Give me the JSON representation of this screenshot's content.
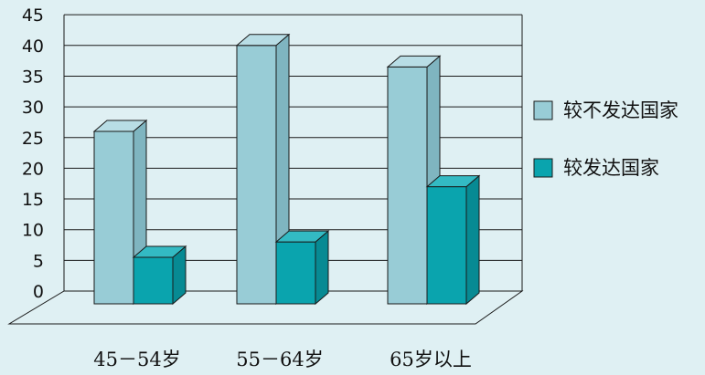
{
  "colors": {
    "background": "#dff0f3",
    "grid": "#1a1a1a",
    "light_front": "#98ccd6",
    "light_top": "#b8dde5",
    "light_side": "#7fb5c0",
    "dark_front": "#0aa4ae",
    "dark_top": "#33bac3",
    "dark_side": "#078a93",
    "edge": "#1a1a1a"
  },
  "chart_data": {
    "type": "bar",
    "title": "",
    "xlabel": "",
    "ylabel": "",
    "ylim": [
      0,
      45
    ],
    "yticks": [
      0,
      5,
      10,
      15,
      20,
      25,
      30,
      35,
      40,
      45
    ],
    "categories": [
      "45－54岁",
      "55－64岁",
      "65岁以上"
    ],
    "series": [
      {
        "name": "较不发达国家",
        "values": [
          26,
          40,
          36.5
        ]
      },
      {
        "name": "较发达国家",
        "values": [
          5.5,
          8,
          17
        ]
      }
    ],
    "legend_position": "right",
    "grid": true,
    "style": "3d-bar"
  }
}
